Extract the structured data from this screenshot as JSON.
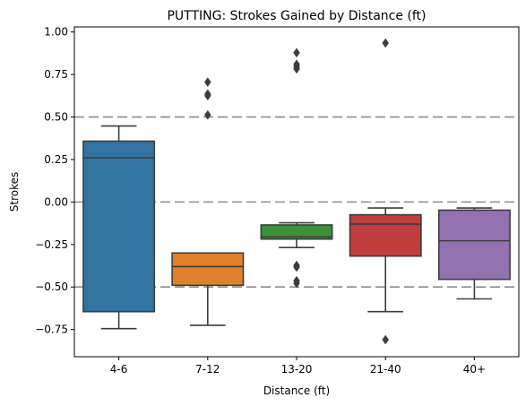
{
  "chart_data": {
    "type": "box",
    "title": "PUTTING: Strokes Gained by Distance (ft)",
    "xlabel": "Distance (ft)",
    "ylabel": "Strokes",
    "ylim": [
      -0.91,
      1.03
    ],
    "yticks": [
      1.0,
      0.75,
      0.5,
      0.25,
      0.0,
      -0.25,
      -0.5,
      -0.75
    ],
    "ytick_labels": [
      "1.00",
      "0.75",
      "0.50",
      "0.25",
      "0.00",
      "−0.25",
      "−0.50",
      "−0.75"
    ],
    "reference_lines": [
      0.5,
      0.0,
      -0.5
    ],
    "categories": [
      "4-6",
      "7-12",
      "13-20",
      "21-40",
      "40+"
    ],
    "boxes": [
      {
        "category": "4-6",
        "color": "#3274a1",
        "whisker_low": -0.745,
        "q1": -0.645,
        "median": 0.26,
        "q3": 0.358,
        "whisker_high": 0.447,
        "outliers": []
      },
      {
        "category": "7-12",
        "color": "#e1812c",
        "whisker_low": -0.725,
        "q1": -0.49,
        "median": -0.38,
        "q3": -0.3,
        "whisker_high": -0.3,
        "outliers": [
          0.705,
          0.635,
          0.625,
          0.512
        ]
      },
      {
        "category": "13-20",
        "color": "#3a923a",
        "whisker_low": -0.268,
        "q1": -0.218,
        "median": -0.205,
        "q3": -0.135,
        "whisker_high": -0.122,
        "outliers": [
          0.878,
          0.81,
          0.795,
          0.783,
          -0.373,
          -0.383,
          -0.463,
          -0.478
        ]
      },
      {
        "category": "21-40",
        "color": "#c03d3e",
        "whisker_low": -0.645,
        "q1": -0.318,
        "median": -0.13,
        "q3": -0.075,
        "whisker_high": -0.035,
        "outliers": [
          0.935,
          -0.81
        ]
      },
      {
        "category": "40+",
        "color": "#9372b2",
        "whisker_low": -0.57,
        "q1": -0.455,
        "median": -0.228,
        "q3": -0.048,
        "whisker_high": -0.035,
        "outliers": []
      }
    ]
  }
}
